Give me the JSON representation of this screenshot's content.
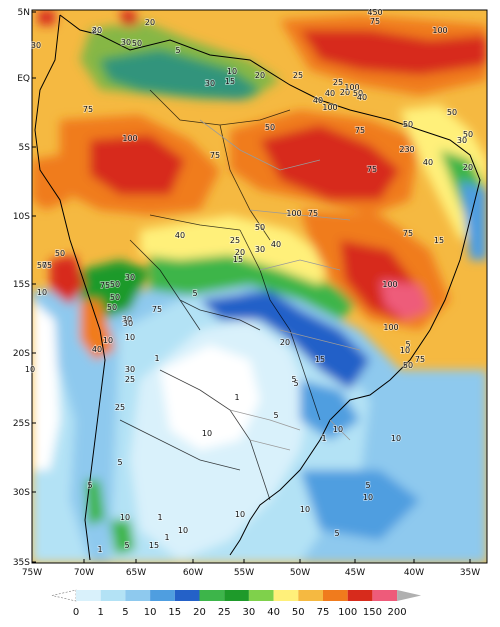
{
  "map": {
    "lat_ticks": [
      "5N",
      "EQ",
      "5S",
      "10S",
      "15S",
      "20S",
      "25S",
      "30S",
      "35S"
    ],
    "lon_ticks": [
      "75W",
      "70W",
      "65W",
      "60W",
      "55W",
      "50W",
      "45W",
      "40W",
      "35W"
    ],
    "contour_labels": [
      "40",
      "50",
      "30",
      "20",
      "30",
      "5",
      "10",
      "15",
      "20",
      "25",
      "30",
      "20",
      "40",
      "25",
      "450",
      "75",
      "100",
      "50",
      "100",
      "40",
      "50",
      "40",
      "100",
      "50",
      "50",
      "75",
      "100",
      "50",
      "75",
      "75",
      "30",
      "230",
      "40",
      "20",
      "75",
      "100",
      "50",
      "75",
      "100",
      "75",
      "40",
      "25",
      "20",
      "15",
      "30",
      "40",
      "50",
      "50",
      "75",
      "75",
      "15",
      "50",
      "50",
      "30",
      "50",
      "30",
      "100",
      "10",
      "5",
      "75",
      "40",
      "10",
      "30",
      "10",
      "30",
      "10",
      "25",
      "25",
      "5",
      "5",
      "1",
      "1",
      "1",
      "10",
      "5",
      "10",
      "15",
      "5",
      "10",
      "75",
      "50",
      "20",
      "10",
      "5",
      "5",
      "10",
      "10",
      "1",
      "5",
      "5",
      "10",
      "10",
      "15",
      "5",
      "1",
      "1",
      "10",
      "20"
    ]
  },
  "legend": {
    "labels": [
      "0",
      "1",
      "5",
      "10",
      "15",
      "20",
      "25",
      "30",
      "40",
      "50",
      "75",
      "100",
      "150",
      "200"
    ],
    "colors": [
      "#ffffff",
      "#d9f1fb",
      "#b3e2f5",
      "#8ec9ee",
      "#4f9ee0",
      "#2461c8",
      "#3db54a",
      "#1e9a2a",
      "#7fd14b",
      "#fff07a",
      "#f5b941",
      "#f07b1d",
      "#d72b1c",
      "#ee5b7a",
      "#b0b0b0"
    ]
  }
}
